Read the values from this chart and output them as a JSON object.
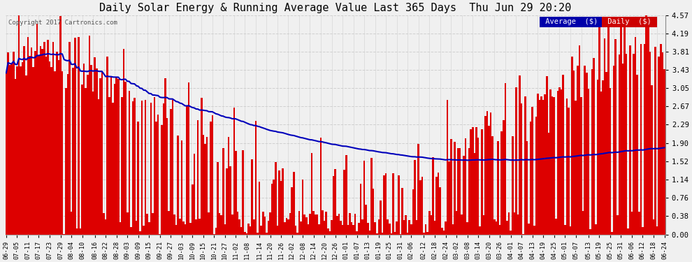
{
  "title": "Daily Solar Energy & Running Average Value Last 365 Days  Thu Jun 29 20:20",
  "copyright_text": "Copyright 2017 Cartronics.com",
  "yticks": [
    0.0,
    0.38,
    0.76,
    1.14,
    1.52,
    1.9,
    2.29,
    2.67,
    3.05,
    3.43,
    3.81,
    4.19,
    4.57
  ],
  "ylim": [
    0.0,
    4.57
  ],
  "bar_color": "#dd0000",
  "avg_line_color": "#0000bb",
  "bg_color": "#f0f0f0",
  "plot_bg_color": "#f0f0f0",
  "grid_color": "#cccccc",
  "title_fontsize": 11,
  "legend_avg_color": "#0000aa",
  "legend_daily_color": "#cc0000",
  "legend_text_color": "#ffffff",
  "n_days": 365,
  "x_tick_labels": [
    "06-29",
    "07-05",
    "07-11",
    "07-17",
    "07-23",
    "07-29",
    "08-04",
    "08-10",
    "08-16",
    "08-22",
    "08-28",
    "09-03",
    "09-09",
    "09-15",
    "09-21",
    "09-27",
    "10-03",
    "10-09",
    "10-15",
    "10-21",
    "10-27",
    "11-02",
    "11-08",
    "11-14",
    "11-20",
    "11-26",
    "12-02",
    "12-08",
    "12-14",
    "12-20",
    "12-26",
    "01-01",
    "01-07",
    "01-13",
    "01-19",
    "01-25",
    "01-31",
    "02-06",
    "02-12",
    "02-18",
    "02-24",
    "03-02",
    "03-08",
    "03-14",
    "03-20",
    "03-26",
    "04-01",
    "04-07",
    "04-13",
    "04-19",
    "04-25",
    "05-01",
    "05-07",
    "05-13",
    "05-19",
    "05-25",
    "05-31",
    "06-06",
    "06-12",
    "06-18",
    "06-24"
  ]
}
